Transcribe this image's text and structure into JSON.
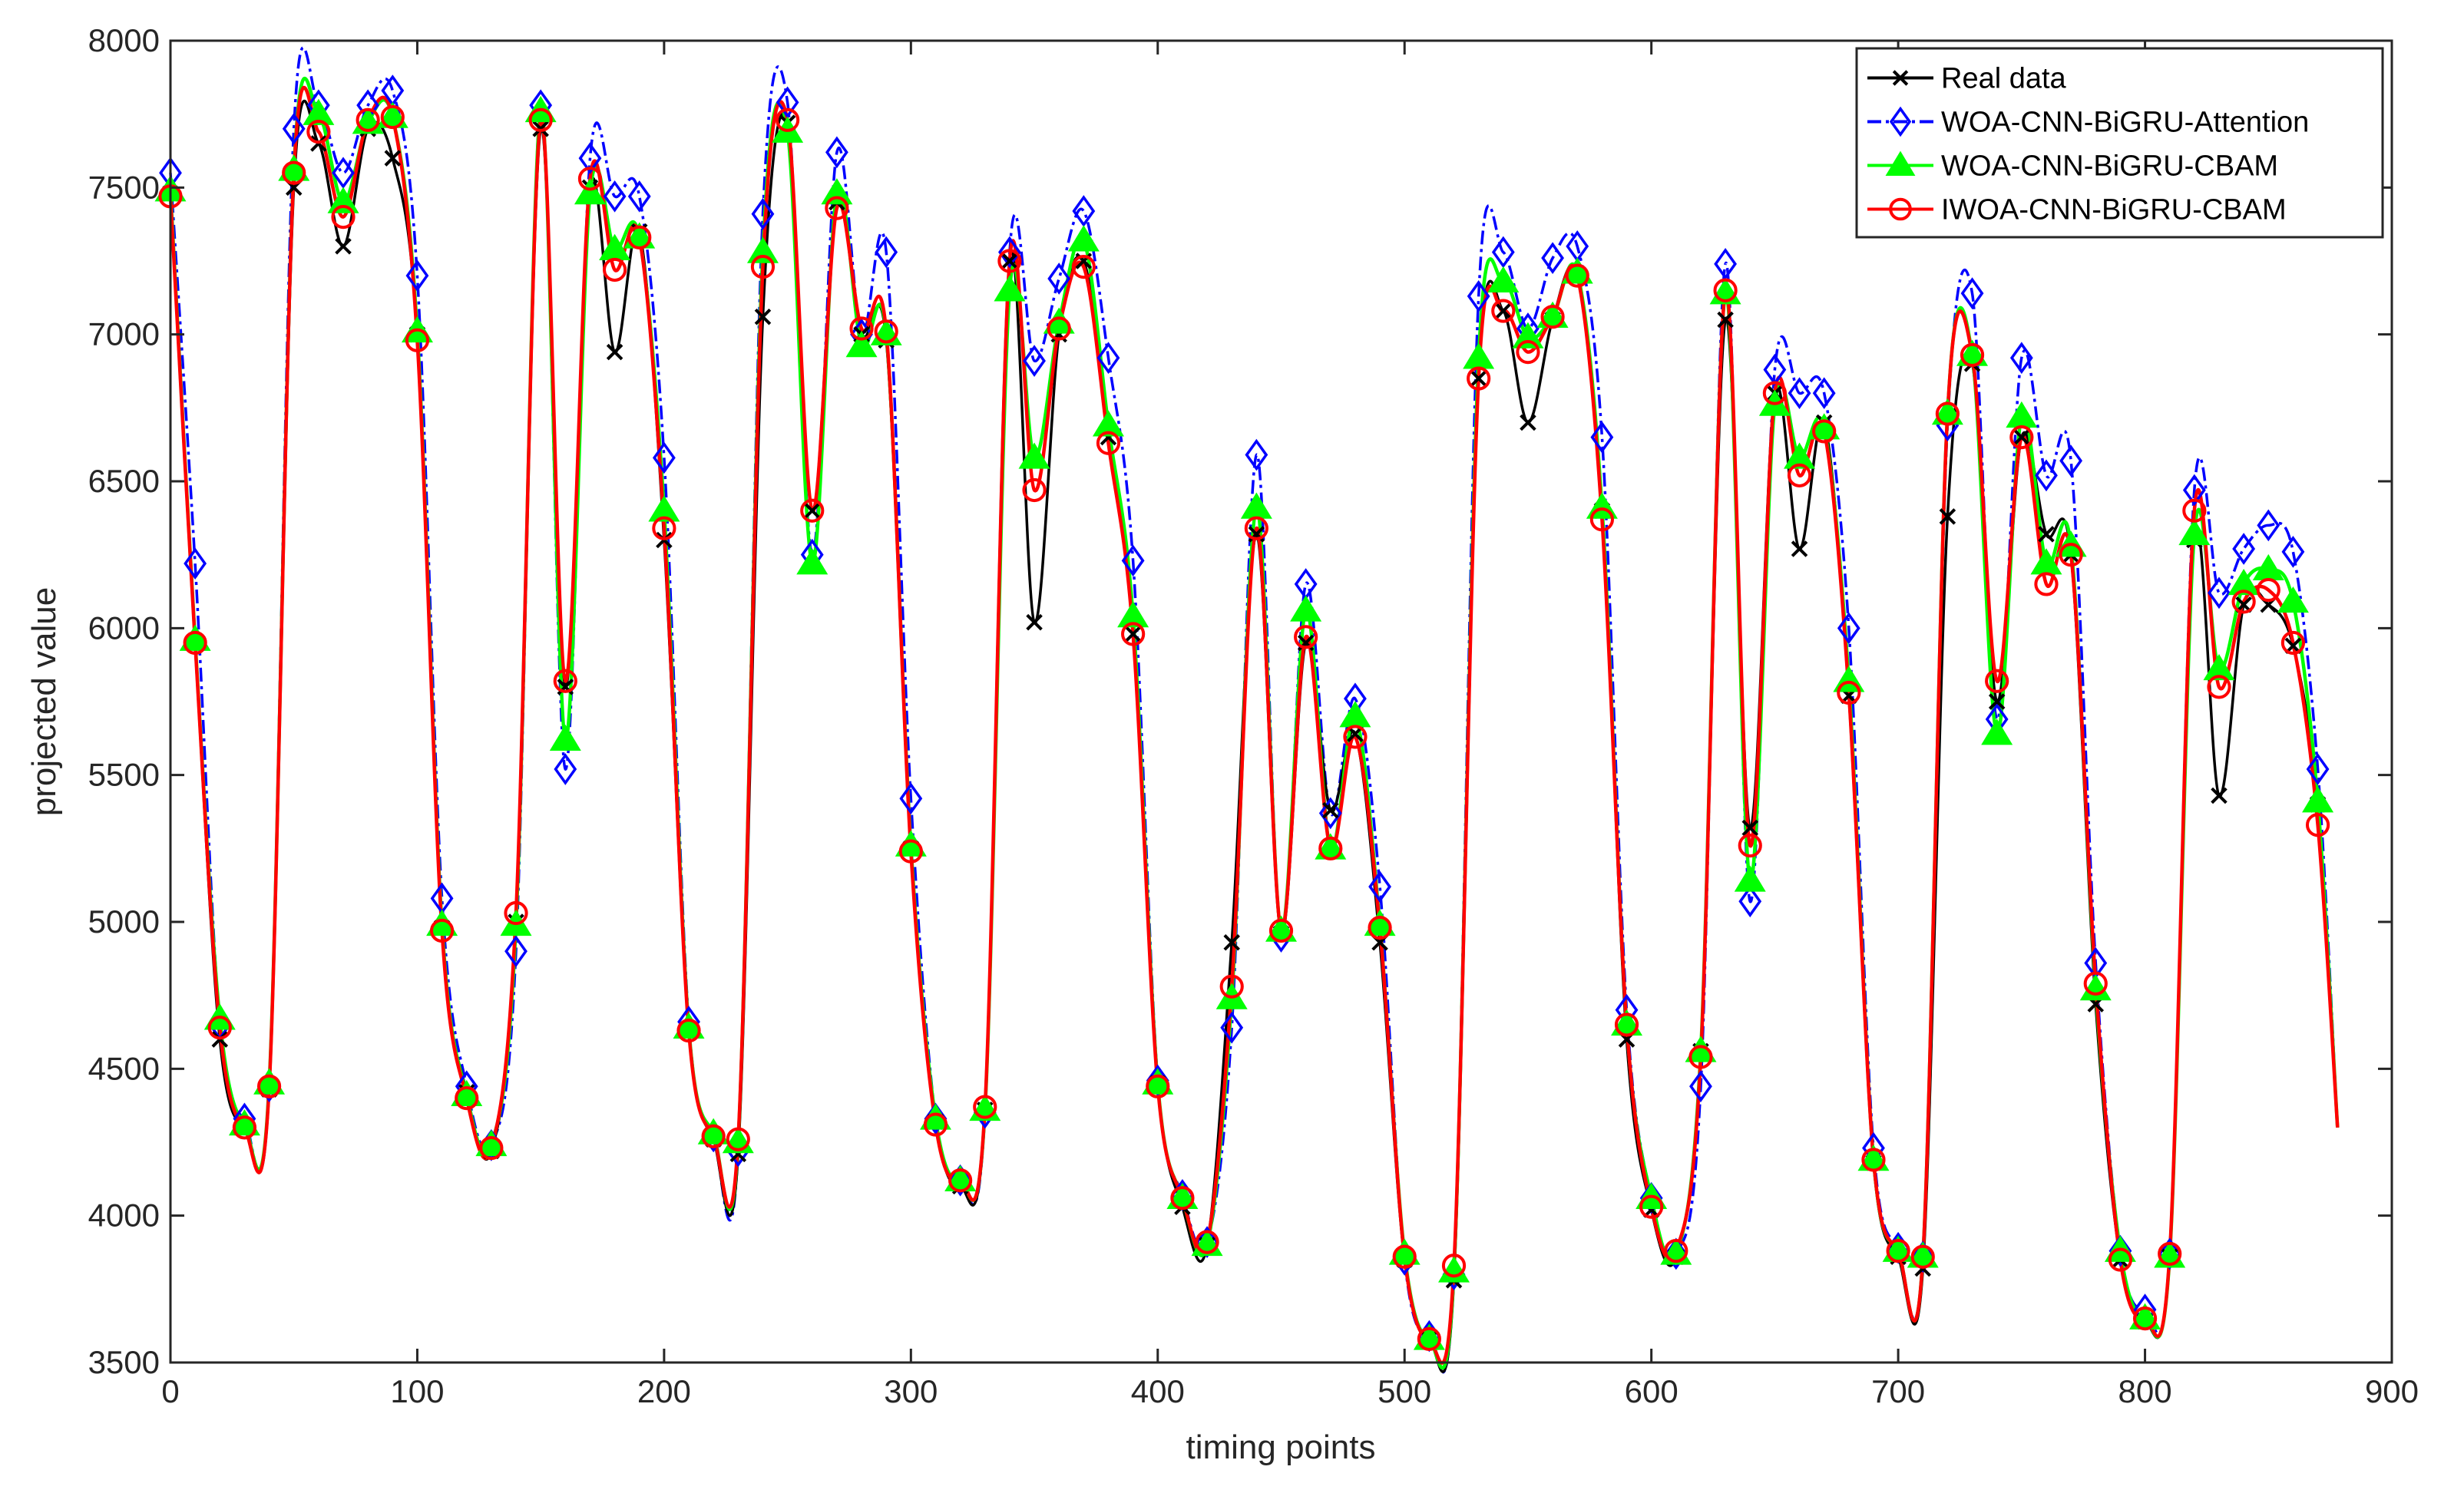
{
  "chart_data": {
    "type": "line",
    "title": "",
    "xlabel": "timing points",
    "ylabel": "projected value",
    "xlim": [
      0,
      900
    ],
    "ylim": [
      3500,
      8000
    ],
    "xticks": [
      0,
      100,
      200,
      300,
      400,
      500,
      600,
      700,
      800,
      900
    ],
    "yticks": [
      3500,
      4000,
      4500,
      5000,
      5500,
      6000,
      6500,
      7000,
      7500,
      8000
    ],
    "grid": false,
    "legend_position": "top-right",
    "x": [
      0,
      10,
      20,
      30,
      40,
      50,
      60,
      70,
      80,
      90,
      100,
      110,
      120,
      130,
      140,
      150,
      160,
      170,
      180,
      190,
      200,
      210,
      220,
      230,
      240,
      250,
      260,
      270,
      280,
      290,
      300,
      310,
      320,
      330,
      340,
      350,
      360,
      370,
      380,
      390,
      400,
      410,
      420,
      430,
      440,
      450,
      460,
      470,
      480,
      490,
      500,
      510,
      520,
      530,
      540,
      550,
      560,
      570,
      580,
      590,
      600,
      610,
      620,
      630,
      640,
      650,
      660,
      670,
      680,
      690,
      700,
      710,
      720,
      730,
      740,
      750,
      760,
      770,
      780,
      790,
      800,
      810,
      820,
      830,
      840,
      850,
      860,
      870,
      878
    ],
    "series": [
      {
        "name": "Real data",
        "color": "#000000",
        "marker": "x",
        "values": [
          7480,
          5950,
          4600,
          4300,
          4430,
          7500,
          7650,
          7300,
          7700,
          7600,
          7000,
          4980,
          4420,
          4220,
          5000,
          7700,
          5800,
          7500,
          6940,
          7350,
          6300,
          4630,
          4260,
          4210,
          7060,
          7720,
          6400,
          7450,
          7000,
          6980,
          5250,
          4320,
          4100,
          4360,
          7250,
          6020,
          7000,
          7250,
          6650,
          5980,
          4450,
          4030,
          3900,
          4930,
          6320,
          4960,
          5950,
          5380,
          5640,
          4930,
          3850,
          3580,
          3780,
          6850,
          7080,
          6700,
          7050,
          7200,
          6400,
          4600,
          4020,
          3860,
          4560,
          7050,
          5320,
          6800,
          6270,
          6700,
          5770,
          4180,
          3860,
          3820,
          6380,
          6900,
          5750,
          6650,
          6320,
          6250,
          4720,
          3850,
          3640,
          3860,
          6300,
          5430,
          6080,
          6080,
          5940,
          5400,
          4300
        ]
      },
      {
        "name": "WOA-CNN-BiGRU-Attention",
        "color": "#0000ff",
        "marker": "diamond",
        "values": [
          7550,
          6220,
          4650,
          4330,
          4440,
          7700,
          7780,
          7550,
          7780,
          7830,
          7200,
          5080,
          4440,
          4240,
          4900,
          7780,
          5520,
          7600,
          7470,
          7470,
          6580,
          4660,
          4270,
          4220,
          7410,
          7790,
          6250,
          7620,
          7000,
          7280,
          5420,
          4330,
          4120,
          4350,
          7280,
          6910,
          7190,
          7420,
          6920,
          6230,
          4460,
          4070,
          3910,
          4640,
          6590,
          4950,
          6150,
          5370,
          5760,
          5120,
          3850,
          3590,
          3800,
          7130,
          7280,
          7020,
          7260,
          7300,
          6650,
          4700,
          4060,
          3870,
          4440,
          7240,
          5070,
          6880,
          6800,
          6800,
          6000,
          4230,
          3890,
          3860,
          6690,
          7140,
          5690,
          6920,
          6520,
          6570,
          4860,
          3880,
          3680,
          3870,
          6470,
          6120,
          6270,
          6350,
          6260,
          5520,
          4300
        ]
      },
      {
        "name": "WOA-CNN-BiGRU-CBAM",
        "color": "#00ff00",
        "marker": "triangle",
        "values": [
          7490,
          5960,
          4670,
          4310,
          4450,
          7560,
          7750,
          7450,
          7720,
          7740,
          7010,
          4990,
          4410,
          4240,
          4990,
          7760,
          5620,
          7480,
          7290,
          7330,
          6400,
          4640,
          4280,
          4250,
          7280,
          7690,
          6220,
          7480,
          6960,
          7000,
          5260,
          4330,
          4120,
          4360,
          7150,
          6580,
          7040,
          7320,
          6690,
          6040,
          4450,
          4060,
          3900,
          4740,
          6410,
          4970,
          6060,
          5250,
          5700,
          4990,
          3870,
          3580,
          3810,
          6920,
          7180,
          6990,
          7060,
          7210,
          6410,
          4650,
          4060,
          3870,
          4560,
          7140,
          5140,
          6760,
          6580,
          6680,
          5820,
          4190,
          3880,
          3860,
          6730,
          6930,
          5640,
          6720,
          6220,
          6280,
          4770,
          3880,
          3650,
          3860,
          6320,
          5860,
          6150,
          6200,
          6090,
          5410,
          4300
        ]
      },
      {
        "name": "IWOA-CNN-BiGRU-CBAM",
        "color": "#ff0000",
        "marker": "circle",
        "values": [
          7470,
          5950,
          4640,
          4300,
          4440,
          7550,
          7690,
          7400,
          7730,
          7740,
          6980,
          4970,
          4400,
          4230,
          5030,
          7730,
          5820,
          7530,
          7220,
          7330,
          6340,
          4630,
          4270,
          4260,
          7230,
          7730,
          6400,
          7430,
          7020,
          7010,
          5240,
          4310,
          4120,
          4370,
          7250,
          6470,
          7020,
          7230,
          6630,
          5980,
          4440,
          4060,
          3910,
          4780,
          6340,
          4970,
          5970,
          5250,
          5630,
          4980,
          3860,
          3580,
          3830,
          6850,
          7080,
          6940,
          7060,
          7200,
          6370,
          4650,
          4030,
          3880,
          4540,
          7150,
          5260,
          6800,
          6520,
          6670,
          5780,
          4190,
          3880,
          3860,
          6730,
          6930,
          5820,
          6650,
          6150,
          6250,
          4790,
          3850,
          3650,
          3870,
          6400,
          5800,
          6090,
          6130,
          5950,
          5330,
          4300
        ]
      }
    ]
  }
}
